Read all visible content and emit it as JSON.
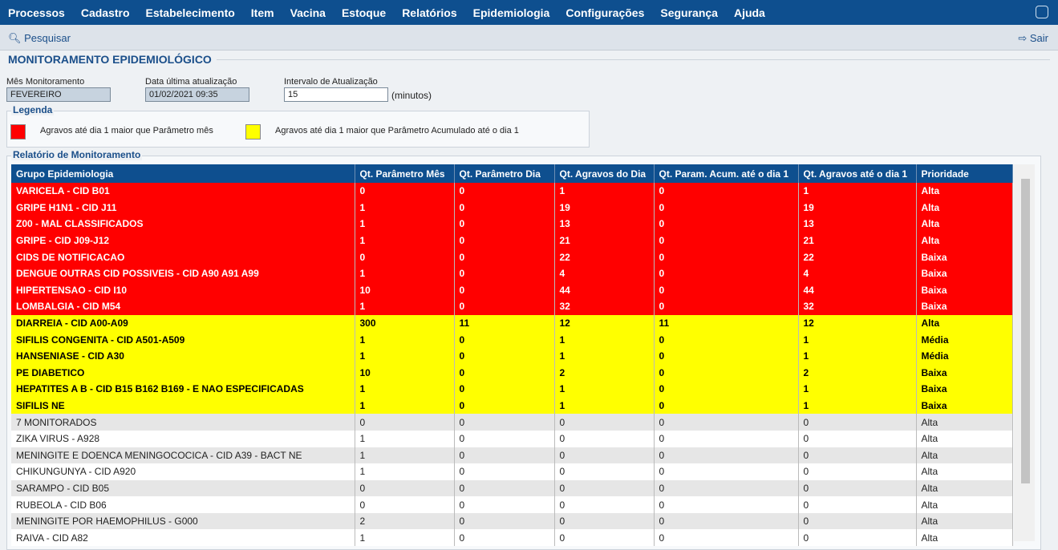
{
  "menu": [
    "Processos",
    "Cadastro",
    "Estabelecimento",
    "Item",
    "Vacina",
    "Estoque",
    "Relatórios",
    "Epidemiologia",
    "Configurações",
    "Segurança",
    "Ajuda"
  ],
  "toolbar": {
    "search": "Pesquisar",
    "exit": "Sair"
  },
  "page_title": "MONITORAMENTO EPIDEMIOLÓGICO",
  "fields": [
    {
      "label": "Mês Monitoramento",
      "value": "FEVEREIRO"
    },
    {
      "label": "Data última atualização",
      "value": "01/02/2021 09:35"
    },
    {
      "label": "Intervalo de Atualização",
      "value": "15",
      "unit": "(minutos)"
    }
  ],
  "legend": {
    "title": "Legenda",
    "items": [
      {
        "color": "#ff0000",
        "label": "Agravos até dia 1 maior que Parâmetro mês"
      },
      {
        "color": "#ffff00",
        "label": "Agravos até dia 1 maior que Parâmetro Acumulado até o dia 1"
      }
    ]
  },
  "report": {
    "title": "Relatório de Monitoramento",
    "columns": [
      "Grupo Epidemiologia",
      "Qt. Parâmetro Mês",
      "Qt. Parâmetro Dia",
      "Qt. Agravos do Dia",
      "Qt. Param. Acum. até o dia 1",
      "Qt. Agravos até o dia 1",
      "Prioridade"
    ],
    "rows": [
      {
        "color": "#ff0000",
        "cells": [
          "VARICELA - CID B01",
          0,
          0,
          1,
          0,
          1,
          "Alta"
        ]
      },
      {
        "color": "#ff0000",
        "cells": [
          "GRIPE H1N1 - CID J11",
          1,
          0,
          19,
          0,
          19,
          "Alta"
        ]
      },
      {
        "color": "#ff0000",
        "cells": [
          "Z00 - MAL CLASSIFICADOS",
          1,
          0,
          13,
          0,
          13,
          "Alta"
        ]
      },
      {
        "color": "#ff0000",
        "cells": [
          "GRIPE - CID J09-J12",
          1,
          0,
          21,
          0,
          21,
          "Alta"
        ]
      },
      {
        "color": "#ff0000",
        "cells": [
          "CIDS DE NOTIFICACAO",
          0,
          0,
          22,
          0,
          22,
          "Baixa"
        ]
      },
      {
        "color": "#ff0000",
        "cells": [
          "DENGUE OUTRAS CID POSSIVEIS - CID A90 A91 A99",
          1,
          0,
          4,
          0,
          4,
          "Baixa"
        ]
      },
      {
        "color": "#ff0000",
        "cells": [
          "HIPERTENSAO - CID I10",
          10,
          0,
          44,
          0,
          44,
          "Baixa"
        ]
      },
      {
        "color": "#ff0000",
        "cells": [
          "LOMBALGIA - CID M54",
          1,
          0,
          32,
          0,
          32,
          "Baixa"
        ]
      },
      {
        "color": "#ffff00",
        "cells": [
          "DIARREIA - CID A00-A09",
          300,
          11,
          12,
          11,
          12,
          "Alta"
        ]
      },
      {
        "color": "#ffff00",
        "cells": [
          "SIFILIS CONGENITA - CID A501-A509",
          1,
          0,
          1,
          0,
          1,
          "Média"
        ]
      },
      {
        "color": "#ffff00",
        "cells": [
          "HANSENIASE - CID A30",
          1,
          0,
          1,
          0,
          1,
          "Média"
        ]
      },
      {
        "color": "#ffff00",
        "cells": [
          "PE DIABETICO",
          10,
          0,
          2,
          0,
          2,
          "Baixa"
        ]
      },
      {
        "color": "#ffff00",
        "cells": [
          "HEPATITES A B - CID B15 B162 B169 - E NAO ESPECIFICADAS",
          1,
          0,
          1,
          0,
          1,
          "Baixa"
        ]
      },
      {
        "color": "#ffff00",
        "cells": [
          "SIFILIS NE",
          1,
          0,
          1,
          0,
          1,
          "Baixa"
        ]
      },
      {
        "cells": [
          "7 MONITORADOS",
          0,
          0,
          0,
          0,
          0,
          "Alta"
        ]
      },
      {
        "cells": [
          "ZIKA VIRUS - A928",
          1,
          0,
          0,
          0,
          0,
          "Alta"
        ]
      },
      {
        "cells": [
          "MENINGITE E DOENCA MENINGOCOCICA - CID A39 - BACT NE",
          1,
          0,
          0,
          0,
          0,
          "Alta"
        ]
      },
      {
        "cells": [
          "CHIKUNGUNYA - CID A920",
          1,
          0,
          0,
          0,
          0,
          "Alta"
        ]
      },
      {
        "cells": [
          "SARAMPO - CID B05",
          0,
          0,
          0,
          0,
          0,
          "Alta"
        ]
      },
      {
        "cells": [
          "RUBEOLA - CID B06",
          0,
          0,
          0,
          0,
          0,
          "Alta"
        ]
      },
      {
        "cells": [
          "MENINGITE POR HAEMOPHILUS - G000",
          2,
          0,
          0,
          0,
          0,
          "Alta"
        ]
      },
      {
        "cells": [
          "RAIVA - CID A82",
          1,
          0,
          0,
          0,
          0,
          "Alta"
        ]
      }
    ]
  }
}
